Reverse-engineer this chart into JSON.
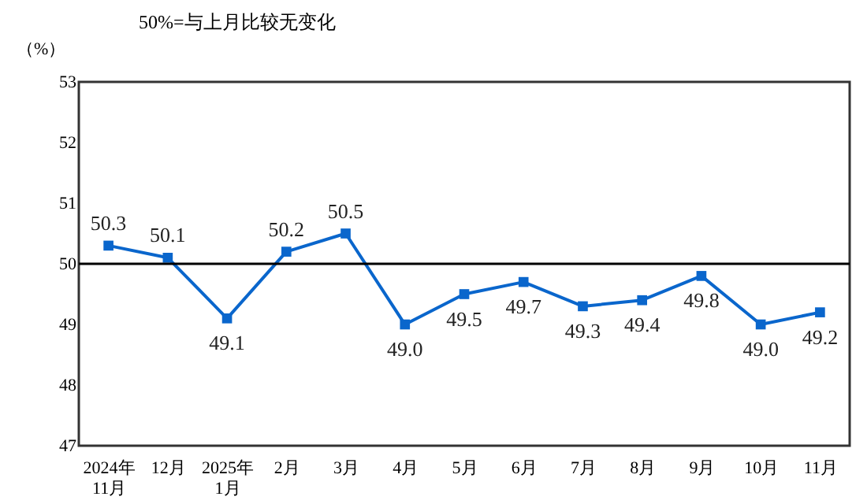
{
  "chart_data": {
    "type": "line",
    "ylabel": "（%）",
    "annotations": [
      "50%=与上月比较无变化"
    ],
    "categories": [
      "2024年\n11月",
      "12月",
      "2025年\n1月",
      "2月",
      "3月",
      "4月",
      "5月",
      "6月",
      "7月",
      "8月",
      "9月",
      "10月",
      "11月"
    ],
    "series": [
      {
        "color": "#0a66cc",
        "values": [
          50.3,
          50.1,
          49.1,
          50.2,
          50.5,
          49.0,
          49.5,
          49.7,
          49.3,
          49.4,
          49.8,
          49.0,
          49.2
        ],
        "value_labels": [
          "50.3",
          "50.1",
          "49.1",
          "50.2",
          "50.5",
          "49.0",
          "49.5",
          "49.7",
          "49.3",
          "49.4",
          "49.8",
          "49.0",
          "49.2"
        ]
      }
    ],
    "ylim": [
      47,
      53
    ],
    "yticks": [
      47,
      48,
      49,
      50,
      51,
      52,
      53
    ],
    "ref_lines": [
      {
        "axis": "y",
        "value": 50,
        "color": "#000000"
      }
    ],
    "marker": "square",
    "line_style": "solid",
    "grid": false,
    "legend": false
  }
}
